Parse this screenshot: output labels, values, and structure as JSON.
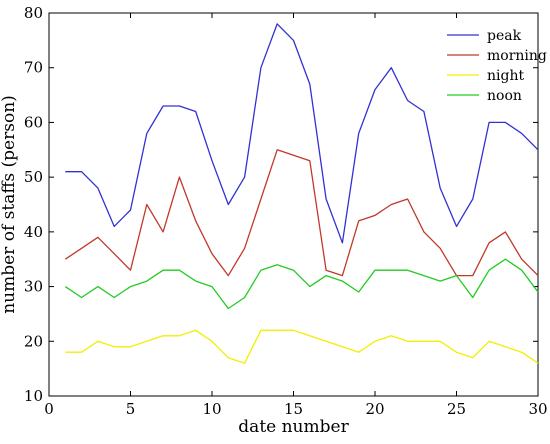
{
  "chart_data": {
    "type": "line",
    "title": "",
    "xlabel": "date number",
    "ylabel": "number of staffs (person)",
    "xlim": [
      0,
      30
    ],
    "ylim": [
      10,
      80
    ],
    "xticks": [
      0,
      5,
      10,
      15,
      20,
      25,
      30
    ],
    "yticks": [
      10,
      20,
      30,
      40,
      50,
      60,
      70,
      80
    ],
    "grid": false,
    "legend_position": "top-right",
    "x": [
      1,
      2,
      3,
      4,
      5,
      6,
      7,
      8,
      9,
      10,
      11,
      12,
      13,
      14,
      15,
      16,
      17,
      18,
      19,
      20,
      21,
      22,
      23,
      24,
      25,
      26,
      27,
      28,
      29,
      30
    ],
    "series": [
      {
        "name": "peak",
        "color": "#3232d2",
        "values": [
          51,
          51,
          48,
          41,
          44,
          58,
          63,
          63,
          62,
          53,
          45,
          50,
          70,
          78,
          75,
          67,
          46,
          38,
          58,
          66,
          70,
          64,
          62,
          48,
          41,
          46,
          60,
          60,
          58,
          55
        ]
      },
      {
        "name": "morning",
        "color": "#c0392b",
        "values": [
          35,
          37,
          39,
          36,
          33,
          45,
          40,
          50,
          42,
          36,
          32,
          37,
          46,
          55,
          54,
          53,
          33,
          32,
          42,
          43,
          45,
          46,
          40,
          37,
          32,
          32,
          38,
          40,
          35,
          32
        ]
      },
      {
        "name": "night",
        "color": "#f0f000",
        "values": [
          18,
          18,
          20,
          19,
          19,
          20,
          21,
          21,
          22,
          20,
          17,
          16,
          22,
          22,
          22,
          21,
          20,
          19,
          18,
          20,
          21,
          20,
          20,
          20,
          18,
          17,
          20,
          19,
          18,
          16
        ]
      },
      {
        "name": "noon",
        "color": "#22cc22",
        "values": [
          30,
          28,
          30,
          28,
          30,
          31,
          33,
          33,
          31,
          30,
          26,
          28,
          33,
          34,
          33,
          30,
          32,
          31,
          29,
          33,
          33,
          33,
          32,
          31,
          32,
          28,
          33,
          35,
          33,
          29
        ]
      }
    ]
  }
}
